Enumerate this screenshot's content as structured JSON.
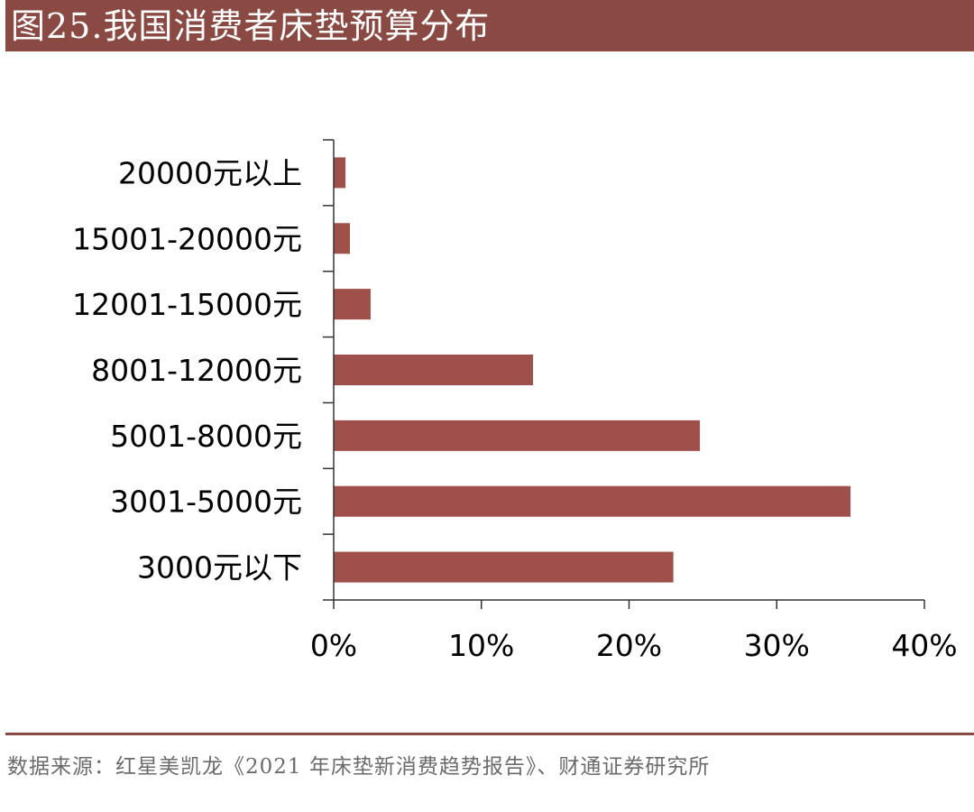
{
  "header": {
    "title": "图25.我国消费者床垫预算分布"
  },
  "chart_data": {
    "type": "bar",
    "orientation": "horizontal",
    "categories": [
      "20000元以上",
      "15001-20000元",
      "12001-15000元",
      "8001-12000元",
      "5001-8000元",
      "3001-5000元",
      "3000元以下"
    ],
    "values": [
      0.8,
      1.1,
      2.5,
      13.5,
      24.8,
      35.0,
      23.0
    ],
    "value_unit": "%",
    "xlim": [
      0,
      40
    ],
    "xticks": [
      0,
      10,
      20,
      30,
      40
    ],
    "xtick_labels": [
      "0%",
      "10%",
      "20%",
      "30%",
      "40%"
    ],
    "bar_color": "#a0504a",
    "grid": false,
    "title": "",
    "xlabel": "",
    "ylabel": ""
  },
  "footer": {
    "source": "数据来源：红星美凯龙《2021 年床垫新消费趋势报告》、财通证券研究所"
  },
  "colors": {
    "header_bg": "#8a4a43",
    "header_text": "#ffffff",
    "bar": "#a0504a",
    "axis": "#333333",
    "source_text": "#6b6b6b"
  }
}
